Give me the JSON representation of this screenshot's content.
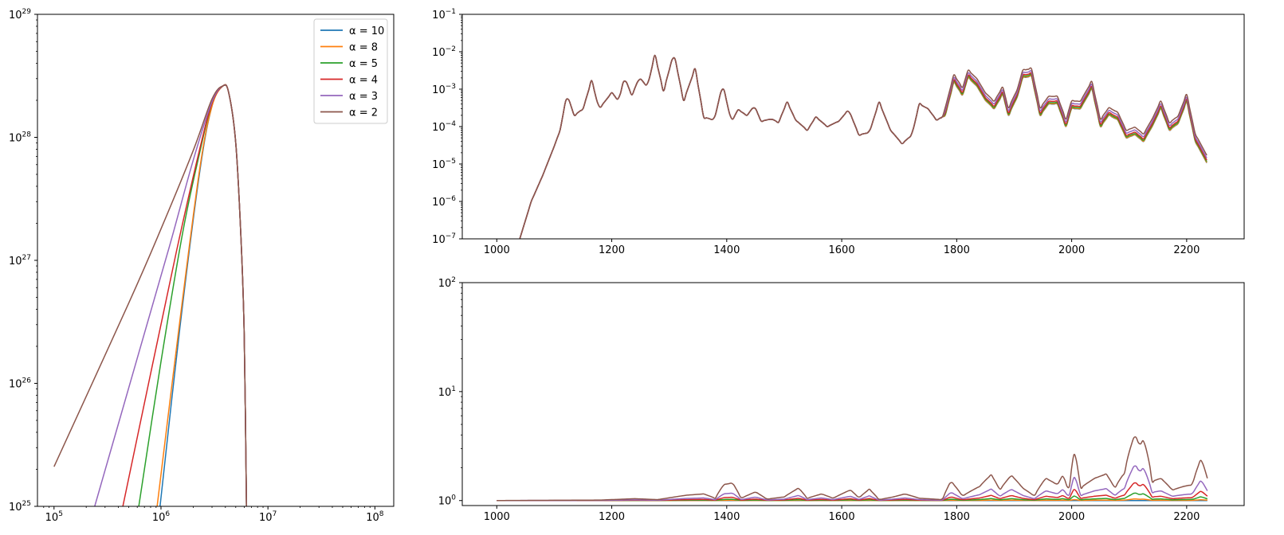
{
  "colors": [
    "#1f77b4",
    "#ff7f0e",
    "#2ca02c",
    "#d62728",
    "#9467bd",
    "#8c564b"
  ],
  "chart_data": [
    {
      "id": "left",
      "type": "line",
      "xscale": "log",
      "yscale": "log",
      "xlim": [
        70000,
        150000000
      ],
      "ylim": [
        1e+25,
        1e+29
      ],
      "legend": "top-right",
      "xticks": [
        {
          "value": 100000,
          "base": "10",
          "exp": "5"
        },
        {
          "value": 1000000,
          "base": "10",
          "exp": "6"
        },
        {
          "value": 10000000,
          "base": "10",
          "exp": "7"
        },
        {
          "value": 100000000,
          "base": "10",
          "exp": "8"
        }
      ],
      "yticks": [
        {
          "value": 1e+25,
          "base": "10",
          "exp": "25"
        },
        {
          "value": 1e+26,
          "base": "10",
          "exp": "26"
        },
        {
          "value": 1e+27,
          "base": "10",
          "exp": "27"
        },
        {
          "value": 1e+28,
          "base": "10",
          "exp": "28"
        },
        {
          "value": 1e+29,
          "base": "10",
          "exp": "29"
        }
      ],
      "series": [
        {
          "name": "α = 10",
          "points": [
            [
              980000,
              1e+25
            ],
            [
              1500000,
              2.8e+26
            ],
            [
              2300000,
              5.2e+27
            ],
            [
              3000000,
              1.8e+28
            ],
            [
              3800000,
              2.62e+28
            ],
            [
              4300000,
              2.3e+28
            ],
            [
              5000000,
              9e+27
            ],
            [
              5600000,
              1.5e+27
            ],
            [
              6000000,
              2.5e+26
            ],
            [
              6300000,
              1e+25
            ]
          ]
        },
        {
          "name": "α = 8",
          "points": [
            [
              920000,
              1e+25
            ],
            [
              1500000,
              3.2e+26
            ],
            [
              2300000,
              5.5e+27
            ],
            [
              3000000,
              1.8e+28
            ],
            [
              3800000,
              2.62e+28
            ],
            [
              4300000,
              2.3e+28
            ],
            [
              5000000,
              9e+27
            ],
            [
              5600000,
              1.5e+27
            ],
            [
              6000000,
              2.5e+26
            ],
            [
              6300000,
              1e+25
            ]
          ]
        },
        {
          "name": "α = 5",
          "points": [
            [
              620000,
              1e+25
            ],
            [
              1000000,
              1.5e+26
            ],
            [
              1600000,
              1.7e+27
            ],
            [
              2300000,
              7.5e+27
            ],
            [
              3000000,
              1.9e+28
            ],
            [
              3800000,
              2.62e+28
            ],
            [
              4300000,
              2.3e+28
            ],
            [
              5000000,
              9e+27
            ],
            [
              5600000,
              1.5e+27
            ],
            [
              6000000,
              2.5e+26
            ],
            [
              6300000,
              1e+25
            ]
          ]
        },
        {
          "name": "α = 4",
          "points": [
            [
              440000,
              1e+25
            ],
            [
              800000,
              1.2e+26
            ],
            [
              1400000,
              1.2e+27
            ],
            [
              2300000,
              8e+27
            ],
            [
              3000000,
              1.9e+28
            ],
            [
              3800000,
              2.62e+28
            ],
            [
              4300000,
              2.3e+28
            ],
            [
              5000000,
              9e+27
            ],
            [
              5600000,
              1.5e+27
            ],
            [
              6000000,
              2.5e+26
            ],
            [
              6300000,
              1e+25
            ]
          ]
        },
        {
          "name": "α = 3",
          "points": [
            [
              240000,
              1e+25
            ],
            [
              600000,
              1.6e+26
            ],
            [
              1200000,
              1.3e+27
            ],
            [
              2000000,
              6.5e+27
            ],
            [
              3000000,
              1.95e+28
            ],
            [
              3800000,
              2.62e+28
            ],
            [
              4300000,
              2.3e+28
            ],
            [
              5000000,
              9e+27
            ],
            [
              5600000,
              1.5e+27
            ],
            [
              6000000,
              2.5e+26
            ],
            [
              6300000,
              1e+25
            ]
          ]
        },
        {
          "name": "α = 2",
          "points": [
            [
              100000,
              2.1e+25
            ],
            [
              500000,
              4.5e+26
            ],
            [
              1000000,
              1.8e+27
            ],
            [
              2000000,
              7.8e+27
            ],
            [
              3000000,
              2.05e+28
            ],
            [
              3800000,
              2.62e+28
            ],
            [
              4300000,
              2.3e+28
            ],
            [
              5000000,
              9e+27
            ],
            [
              5600000,
              1.5e+27
            ],
            [
              6000000,
              2.5e+26
            ],
            [
              6300000,
              1e+25
            ]
          ]
        }
      ]
    },
    {
      "id": "top-right",
      "type": "line",
      "xscale": "linear",
      "yscale": "log",
      "xlim": [
        940,
        2300
      ],
      "ylim": [
        1e-07,
        0.1
      ],
      "xticks": [
        {
          "value": 1000,
          "label": "1000"
        },
        {
          "value": 1200,
          "label": "1200"
        },
        {
          "value": 1400,
          "label": "1400"
        },
        {
          "value": 1600,
          "label": "1600"
        },
        {
          "value": 1800,
          "label": "1800"
        },
        {
          "value": 2000,
          "label": "2000"
        },
        {
          "value": 2200,
          "label": "2200"
        }
      ],
      "yticks": [
        {
          "value": 1e-07,
          "base": "10",
          "exp": "−7"
        },
        {
          "value": 1e-06,
          "base": "10",
          "exp": "−6"
        },
        {
          "value": 1e-05,
          "base": "10",
          "exp": "−5"
        },
        {
          "value": 0.0001,
          "base": "10",
          "exp": "−4"
        },
        {
          "value": 0.001,
          "base": "10",
          "exp": "−3"
        },
        {
          "value": 0.01,
          "base": "10",
          "exp": "−2"
        },
        {
          "value": 0.1,
          "base": "10",
          "exp": "−1"
        }
      ],
      "base_points": [
        [
          1040,
          1e-07
        ],
        [
          1060,
          1e-06
        ],
        [
          1080,
          5e-06
        ],
        [
          1100,
          3e-05
        ],
        [
          1110,
          8e-05
        ],
        [
          1122,
          0.0007
        ],
        [
          1135,
          0.0002
        ],
        [
          1150,
          0.0003
        ],
        [
          1165,
          0.0017
        ],
        [
          1178,
          0.0003
        ],
        [
          1200,
          0.0008
        ],
        [
          1212,
          0.0005
        ],
        [
          1222,
          0.002
        ],
        [
          1235,
          0.0007
        ],
        [
          1248,
          0.002
        ],
        [
          1262,
          0.0012
        ],
        [
          1275,
          0.008
        ],
        [
          1290,
          0.0009
        ],
        [
          1308,
          0.009
        ],
        [
          1325,
          0.0005
        ],
        [
          1345,
          0.0035
        ],
        [
          1360,
          0.00018
        ],
        [
          1378,
          0.00015
        ],
        [
          1393,
          0.0013
        ],
        [
          1408,
          0.00014
        ],
        [
          1420,
          0.00028
        ],
        [
          1435,
          0.0002
        ],
        [
          1448,
          0.00035
        ],
        [
          1460,
          0.00014
        ],
        [
          1478,
          0.00016
        ],
        [
          1490,
          0.00013
        ],
        [
          1505,
          0.00045
        ],
        [
          1520,
          0.00015
        ],
        [
          1540,
          8e-05
        ],
        [
          1555,
          0.00018
        ],
        [
          1575,
          0.0001
        ],
        [
          1595,
          0.00014
        ],
        [
          1612,
          0.00028
        ],
        [
          1630,
          6e-05
        ],
        [
          1648,
          7e-05
        ],
        [
          1665,
          0.00045
        ],
        [
          1685,
          8e-05
        ],
        [
          1705,
          3.5e-05
        ],
        [
          1722,
          6e-05
        ],
        [
          1735,
          0.0004
        ],
        [
          1750,
          0.0003
        ],
        [
          1765,
          0.00015
        ],
        [
          1780,
          0.0002
        ],
        [
          1795,
          0.0015
        ],
        [
          1810,
          0.0007
        ],
        [
          1820,
          0.002
        ],
        [
          1835,
          0.0012
        ],
        [
          1850,
          0.0005
        ],
        [
          1865,
          0.0003
        ],
        [
          1880,
          0.0007
        ],
        [
          1890,
          0.0002
        ],
        [
          1905,
          0.0006
        ],
        [
          1915,
          0.002
        ],
        [
          1930,
          0.0022
        ],
        [
          1945,
          0.0002
        ],
        [
          1960,
          0.0004
        ],
        [
          1975,
          0.0004
        ],
        [
          1990,
          0.0001
        ],
        [
          2000,
          0.0003
        ],
        [
          2015,
          0.0003
        ],
        [
          2035,
          0.001
        ],
        [
          2050,
          0.0001
        ],
        [
          2065,
          0.0002
        ],
        [
          2080,
          0.00015
        ],
        [
          2095,
          5e-05
        ],
        [
          2110,
          6e-05
        ],
        [
          2125,
          4e-05
        ],
        [
          2140,
          0.0001
        ],
        [
          2155,
          0.0003
        ],
        [
          2170,
          8e-05
        ],
        [
          2185,
          0.00012
        ],
        [
          2200,
          0.00045
        ],
        [
          2215,
          4e-05
        ],
        [
          2236,
          1e-05
        ]
      ],
      "spread_start": 1780,
      "series": [
        {
          "name": "α = 10",
          "factor": 1.0
        },
        {
          "name": "α = 8",
          "factor": 1.02
        },
        {
          "name": "α = 5",
          "factor": 1.08
        },
        {
          "name": "α = 4",
          "factor": 1.18
        },
        {
          "name": "α = 3",
          "factor": 1.35
        },
        {
          "name": "α = 2",
          "factor": 1.6
        }
      ]
    },
    {
      "id": "bottom-right",
      "type": "line",
      "xscale": "linear",
      "yscale": "log",
      "xlim": [
        940,
        2300
      ],
      "ylim": [
        0.9,
        100
      ],
      "xticks": [
        {
          "value": 1000,
          "label": "1000"
        },
        {
          "value": 1200,
          "label": "1200"
        },
        {
          "value": 1400,
          "label": "1400"
        },
        {
          "value": 1600,
          "label": "1600"
        },
        {
          "value": 1800,
          "label": "1800"
        },
        {
          "value": 2000,
          "label": "2000"
        },
        {
          "value": 2200,
          "label": "2200"
        }
      ],
      "yticks": [
        {
          "value": 1,
          "base": "10",
          "exp": "0"
        },
        {
          "value": 10,
          "base": "10",
          "exp": "1"
        },
        {
          "value": 100,
          "base": "10",
          "exp": "2"
        }
      ],
      "excess_points": [
        [
          1000,
          0
        ],
        [
          1180,
          0.01
        ],
        [
          1240,
          0.04
        ],
        [
          1280,
          0.02
        ],
        [
          1330,
          0.12
        ],
        [
          1360,
          0.15
        ],
        [
          1380,
          0.05
        ],
        [
          1395,
          0.4
        ],
        [
          1410,
          0.45
        ],
        [
          1425,
          0.05
        ],
        [
          1450,
          0.2
        ],
        [
          1470,
          0.03
        ],
        [
          1500,
          0.08
        ],
        [
          1525,
          0.3
        ],
        [
          1540,
          0.05
        ],
        [
          1565,
          0.15
        ],
        [
          1585,
          0.05
        ],
        [
          1615,
          0.25
        ],
        [
          1630,
          0.06
        ],
        [
          1648,
          0.27
        ],
        [
          1665,
          0.02
        ],
        [
          1690,
          0.08
        ],
        [
          1710,
          0.15
        ],
        [
          1735,
          0.05
        ],
        [
          1775,
          0.02
        ],
        [
          1790,
          0.5
        ],
        [
          1810,
          0.1
        ],
        [
          1840,
          0.35
        ],
        [
          1860,
          0.72
        ],
        [
          1875,
          0.25
        ],
        [
          1895,
          0.7
        ],
        [
          1915,
          0.3
        ],
        [
          1935,
          0.1
        ],
        [
          1955,
          0.6
        ],
        [
          1975,
          0.4
        ],
        [
          1985,
          0.7
        ],
        [
          1995,
          0.2
        ],
        [
          2005,
          1.8
        ],
        [
          2015,
          0.3
        ],
        [
          2040,
          0.6
        ],
        [
          2060,
          0.75
        ],
        [
          2075,
          0.3
        ],
        [
          2092,
          0.8
        ],
        [
          2110,
          3.0
        ],
        [
          2118,
          2.2
        ],
        [
          2125,
          2.6
        ],
        [
          2140,
          0.5
        ],
        [
          2155,
          0.6
        ],
        [
          2175,
          0.25
        ],
        [
          2195,
          0.35
        ],
        [
          2210,
          0.4
        ],
        [
          2225,
          1.4
        ],
        [
          2236,
          0.6
        ]
      ],
      "series": [
        {
          "name": "α = 10",
          "scale": 0.0
        },
        {
          "name": "α = 8",
          "scale": 0.012
        },
        {
          "name": "α = 5",
          "scale": 0.06
        },
        {
          "name": "α = 4",
          "scale": 0.16
        },
        {
          "name": "α = 3",
          "scale": 0.38
        },
        {
          "name": "α = 2",
          "scale": 1.0
        }
      ]
    }
  ]
}
